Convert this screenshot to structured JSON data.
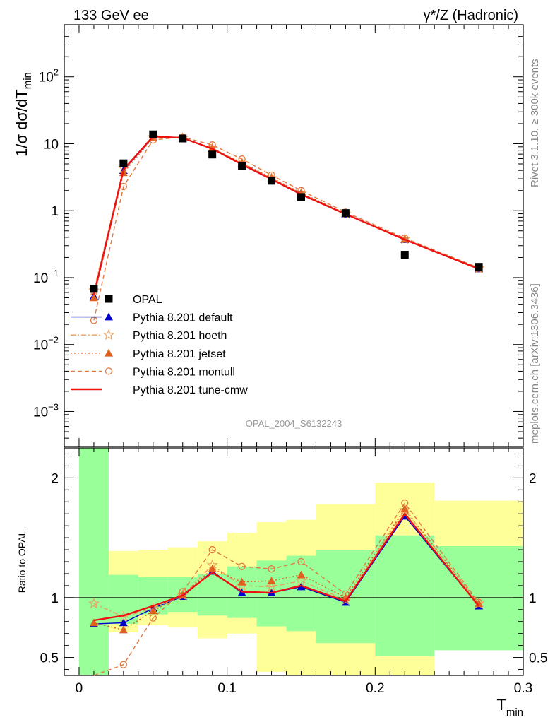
{
  "header": {
    "left": "133 GeV ee",
    "right": "γ*/Z (Hadronic)"
  },
  "side_labels": {
    "rivet": "Rivet 3.1.10, ≥ 300k events",
    "mcplots": "mcplots.cern.ch [arXiv:1306.3436]"
  },
  "analysis_id": "OPAL_2004_S6132243",
  "colors": {
    "data": "#000000",
    "default": "#0000cc",
    "hoeth": "#e8a060",
    "jetset": "#e06020",
    "montull": "#e07840",
    "tune_cmw": "#ee1111",
    "band_inner": "#99ff99",
    "band_outer": "#ffff99"
  },
  "chart_data": [
    {
      "type": "scatter",
      "panel": "main",
      "ylabel": "1/σ dσ/dT_min",
      "yscale": "log",
      "ylim": [
        0.0003,
        600
      ],
      "xlim": [
        -0.01,
        0.3
      ],
      "y_ticklabels": [
        "10^-3",
        "10^-2",
        "10^-1",
        "1",
        "10",
        "10^2"
      ],
      "legend_placement": "lower-left",
      "x": [
        0.01,
        0.03,
        0.05,
        0.07,
        0.09,
        0.11,
        0.13,
        0.15,
        0.18,
        0.22,
        0.27
      ],
      "series": [
        {
          "name": "OPAL",
          "style": "data",
          "values": [
            0.068,
            5.1,
            13.8,
            12.0,
            6.9,
            4.7,
            2.8,
            1.6,
            0.92,
            0.22,
            0.145
          ]
        },
        {
          "name": "Pythia 8.201 default",
          "style": "default",
          "values": [
            0.053,
            4.0,
            12.6,
            12.1,
            8.5,
            5.0,
            3.0,
            1.78,
            0.89,
            0.37,
            0.135
          ]
        },
        {
          "name": "Pythia 8.201 hoeth",
          "style": "hoeth",
          "values": [
            0.064,
            4.3,
            12.5,
            12.2,
            8.6,
            5.1,
            3.05,
            1.8,
            0.9,
            0.375,
            0.137
          ]
        },
        {
          "name": "Pythia 8.201 jetset",
          "style": "jetset",
          "values": [
            0.05,
            3.7,
            12.3,
            12.2,
            8.6,
            5.2,
            3.1,
            1.85,
            0.91,
            0.375,
            0.138
          ]
        },
        {
          "name": "Pythia 8.201 montull",
          "style": "montull",
          "values": [
            0.023,
            2.3,
            11.4,
            12.6,
            9.6,
            5.9,
            3.4,
            2.0,
            0.95,
            0.39,
            0.14
          ]
        },
        {
          "name": "Pythia 8.201 tune-cmw",
          "style": "tune_cmw",
          "values": [
            0.055,
            4.1,
            12.9,
            12.2,
            8.4,
            4.9,
            2.95,
            1.75,
            0.89,
            0.37,
            0.135
          ]
        }
      ]
    },
    {
      "type": "line",
      "panel": "ratio",
      "ylabel": "Ratio to OPAL",
      "xlabel": "T_min",
      "ylim": [
        0.35,
        2.25
      ],
      "xlim": [
        -0.01,
        0.3
      ],
      "x_ticklabels": [
        "0",
        "0.1",
        "0.2",
        "0.3"
      ],
      "y_ticklabels": [
        "0.5",
        "1",
        "2"
      ],
      "reference_line": 1,
      "uncertainty_bands": {
        "edges": [
          0.0,
          0.02,
          0.04,
          0.06,
          0.08,
          0.1,
          0.12,
          0.14,
          0.16,
          0.2,
          0.24,
          0.3
        ],
        "inner_low": [
          0.35,
          0.78,
          0.86,
          0.88,
          0.85,
          0.83,
          0.76,
          0.72,
          0.62,
          0.51,
          0.56
        ],
        "inner_high": [
          2.25,
          1.19,
          1.17,
          1.17,
          1.2,
          1.26,
          1.31,
          1.35,
          1.4,
          1.52,
          1.43
        ],
        "outer_low": [
          0.35,
          0.71,
          0.77,
          0.75,
          0.66,
          0.7,
          0.38,
          0.35,
          0.35,
          0.35,
          0.66
        ],
        "outer_high": [
          2.25,
          1.39,
          1.4,
          1.42,
          1.47,
          1.54,
          1.63,
          1.65,
          1.78,
          1.96,
          1.81
        ]
      },
      "x": [
        0.01,
        0.03,
        0.05,
        0.07,
        0.09,
        0.11,
        0.13,
        0.15,
        0.18,
        0.22,
        0.27
      ],
      "series": [
        {
          "name": "Pythia 8.201 default",
          "style": "default",
          "values": [
            0.78,
            0.79,
            0.91,
            1.01,
            1.22,
            1.04,
            1.04,
            1.09,
            0.96,
            1.68,
            0.93
          ]
        },
        {
          "name": "Pythia 8.201 hoeth",
          "style": "hoeth",
          "values": [
            0.95,
            0.84,
            0.91,
            1.02,
            1.27,
            1.1,
            1.09,
            1.14,
            0.98,
            1.73,
            0.95
          ]
        },
        {
          "name": "Pythia 8.201 jetset",
          "style": "jetset",
          "values": [
            0.79,
            0.73,
            0.89,
            1.02,
            1.24,
            1.13,
            1.14,
            1.19,
            1.0,
            1.74,
            0.95
          ]
        },
        {
          "name": "Pythia 8.201 montull",
          "style": "montull",
          "values": [
            0.34,
            0.44,
            0.83,
            1.05,
            1.4,
            1.26,
            1.24,
            1.3,
            1.03,
            1.79,
            0.96
          ]
        },
        {
          "name": "Pythia 8.201 tune-cmw",
          "style": "tune_cmw",
          "values": [
            0.81,
            0.85,
            0.93,
            1.02,
            1.21,
            1.05,
            1.04,
            1.1,
            0.97,
            1.7,
            0.93
          ]
        }
      ]
    }
  ]
}
